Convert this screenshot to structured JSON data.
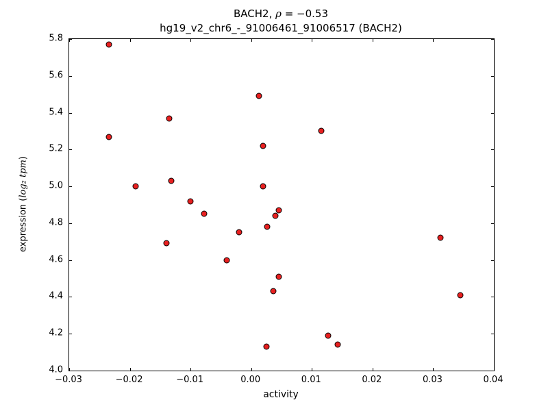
{
  "figure": {
    "title1_prefix": "BACH2, ",
    "title1_rho": "ρ",
    "title1_rest": " = −0.53",
    "title2": "hg19_v2_chr6_-_91006461_91006517 (BACH2)",
    "xlabel": "activity",
    "ylabel_prefix": "expression (",
    "ylabel_math": "log₂ tpm",
    "ylabel_suffix": ")"
  },
  "chart_data": {
    "type": "scatter",
    "title": "BACH2, ρ = −0.53 / hg19_v2_chr6_-_91006461_91006517 (BACH2)",
    "xlabel": "activity",
    "ylabel": "expression (log2 tpm)",
    "xlim": [
      -0.03,
      0.04
    ],
    "ylim": [
      4.0,
      5.8
    ],
    "grid": false,
    "legend": "none",
    "marker_fill": "#e82020",
    "marker_edge": "#000000",
    "x_ticks": [
      -0.03,
      -0.02,
      -0.01,
      0.0,
      0.01,
      0.02,
      0.03,
      0.04
    ],
    "x_tick_labels": [
      "−0.03",
      "−0.02",
      "−0.01",
      "0.00",
      "0.01",
      "0.02",
      "0.03",
      "0.04"
    ],
    "y_ticks": [
      4.0,
      4.2,
      4.4,
      4.6,
      4.8,
      5.0,
      5.2,
      5.4,
      5.6,
      5.8
    ],
    "y_tick_labels": [
      "4.0",
      "4.2",
      "4.4",
      "4.6",
      "4.8",
      "5.0",
      "5.2",
      "5.4",
      "5.6",
      "5.8"
    ],
    "points": [
      [
        -0.0235,
        5.77
      ],
      [
        -0.0235,
        5.27
      ],
      [
        -0.019,
        5.0
      ],
      [
        -0.0135,
        5.37
      ],
      [
        -0.0132,
        5.03
      ],
      [
        -0.014,
        4.69
      ],
      [
        -0.01,
        4.92
      ],
      [
        -0.0078,
        4.85
      ],
      [
        -0.004,
        4.6
      ],
      [
        -0.002,
        4.75
      ],
      [
        0.0013,
        5.49
      ],
      [
        0.002,
        5.22
      ],
      [
        0.002,
        5.0
      ],
      [
        0.0026,
        4.78
      ],
      [
        0.004,
        4.84
      ],
      [
        0.0045,
        4.87
      ],
      [
        0.0037,
        4.43
      ],
      [
        0.0045,
        4.51
      ],
      [
        0.0025,
        4.13
      ],
      [
        0.0115,
        5.3
      ],
      [
        0.0127,
        4.19
      ],
      [
        0.0143,
        4.14
      ],
      [
        0.0312,
        4.72
      ],
      [
        0.0345,
        4.41
      ]
    ]
  }
}
